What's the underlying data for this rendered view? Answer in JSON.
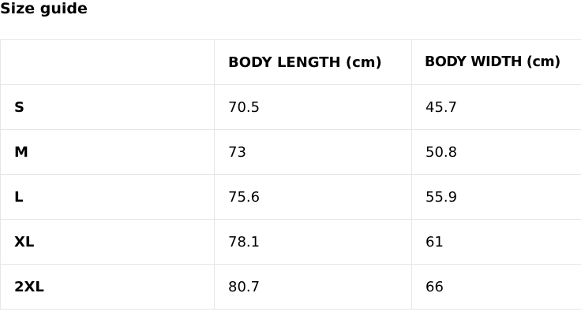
{
  "title": "Size guide",
  "headers": [
    "",
    "BODY LENGTH (cm)",
    "BODY WIDTH (cm)"
  ],
  "rows": [
    {
      "size": "S",
      "length": "70.5",
      "width": "45.7"
    },
    {
      "size": "M",
      "length": "73",
      "width": "50.8"
    },
    {
      "size": "L",
      "length": "75.6",
      "width": "55.9"
    },
    {
      "size": "XL",
      "length": "78.1",
      "width": "61"
    },
    {
      "size": "2XL",
      "length": "80.7",
      "width": "66"
    }
  ]
}
